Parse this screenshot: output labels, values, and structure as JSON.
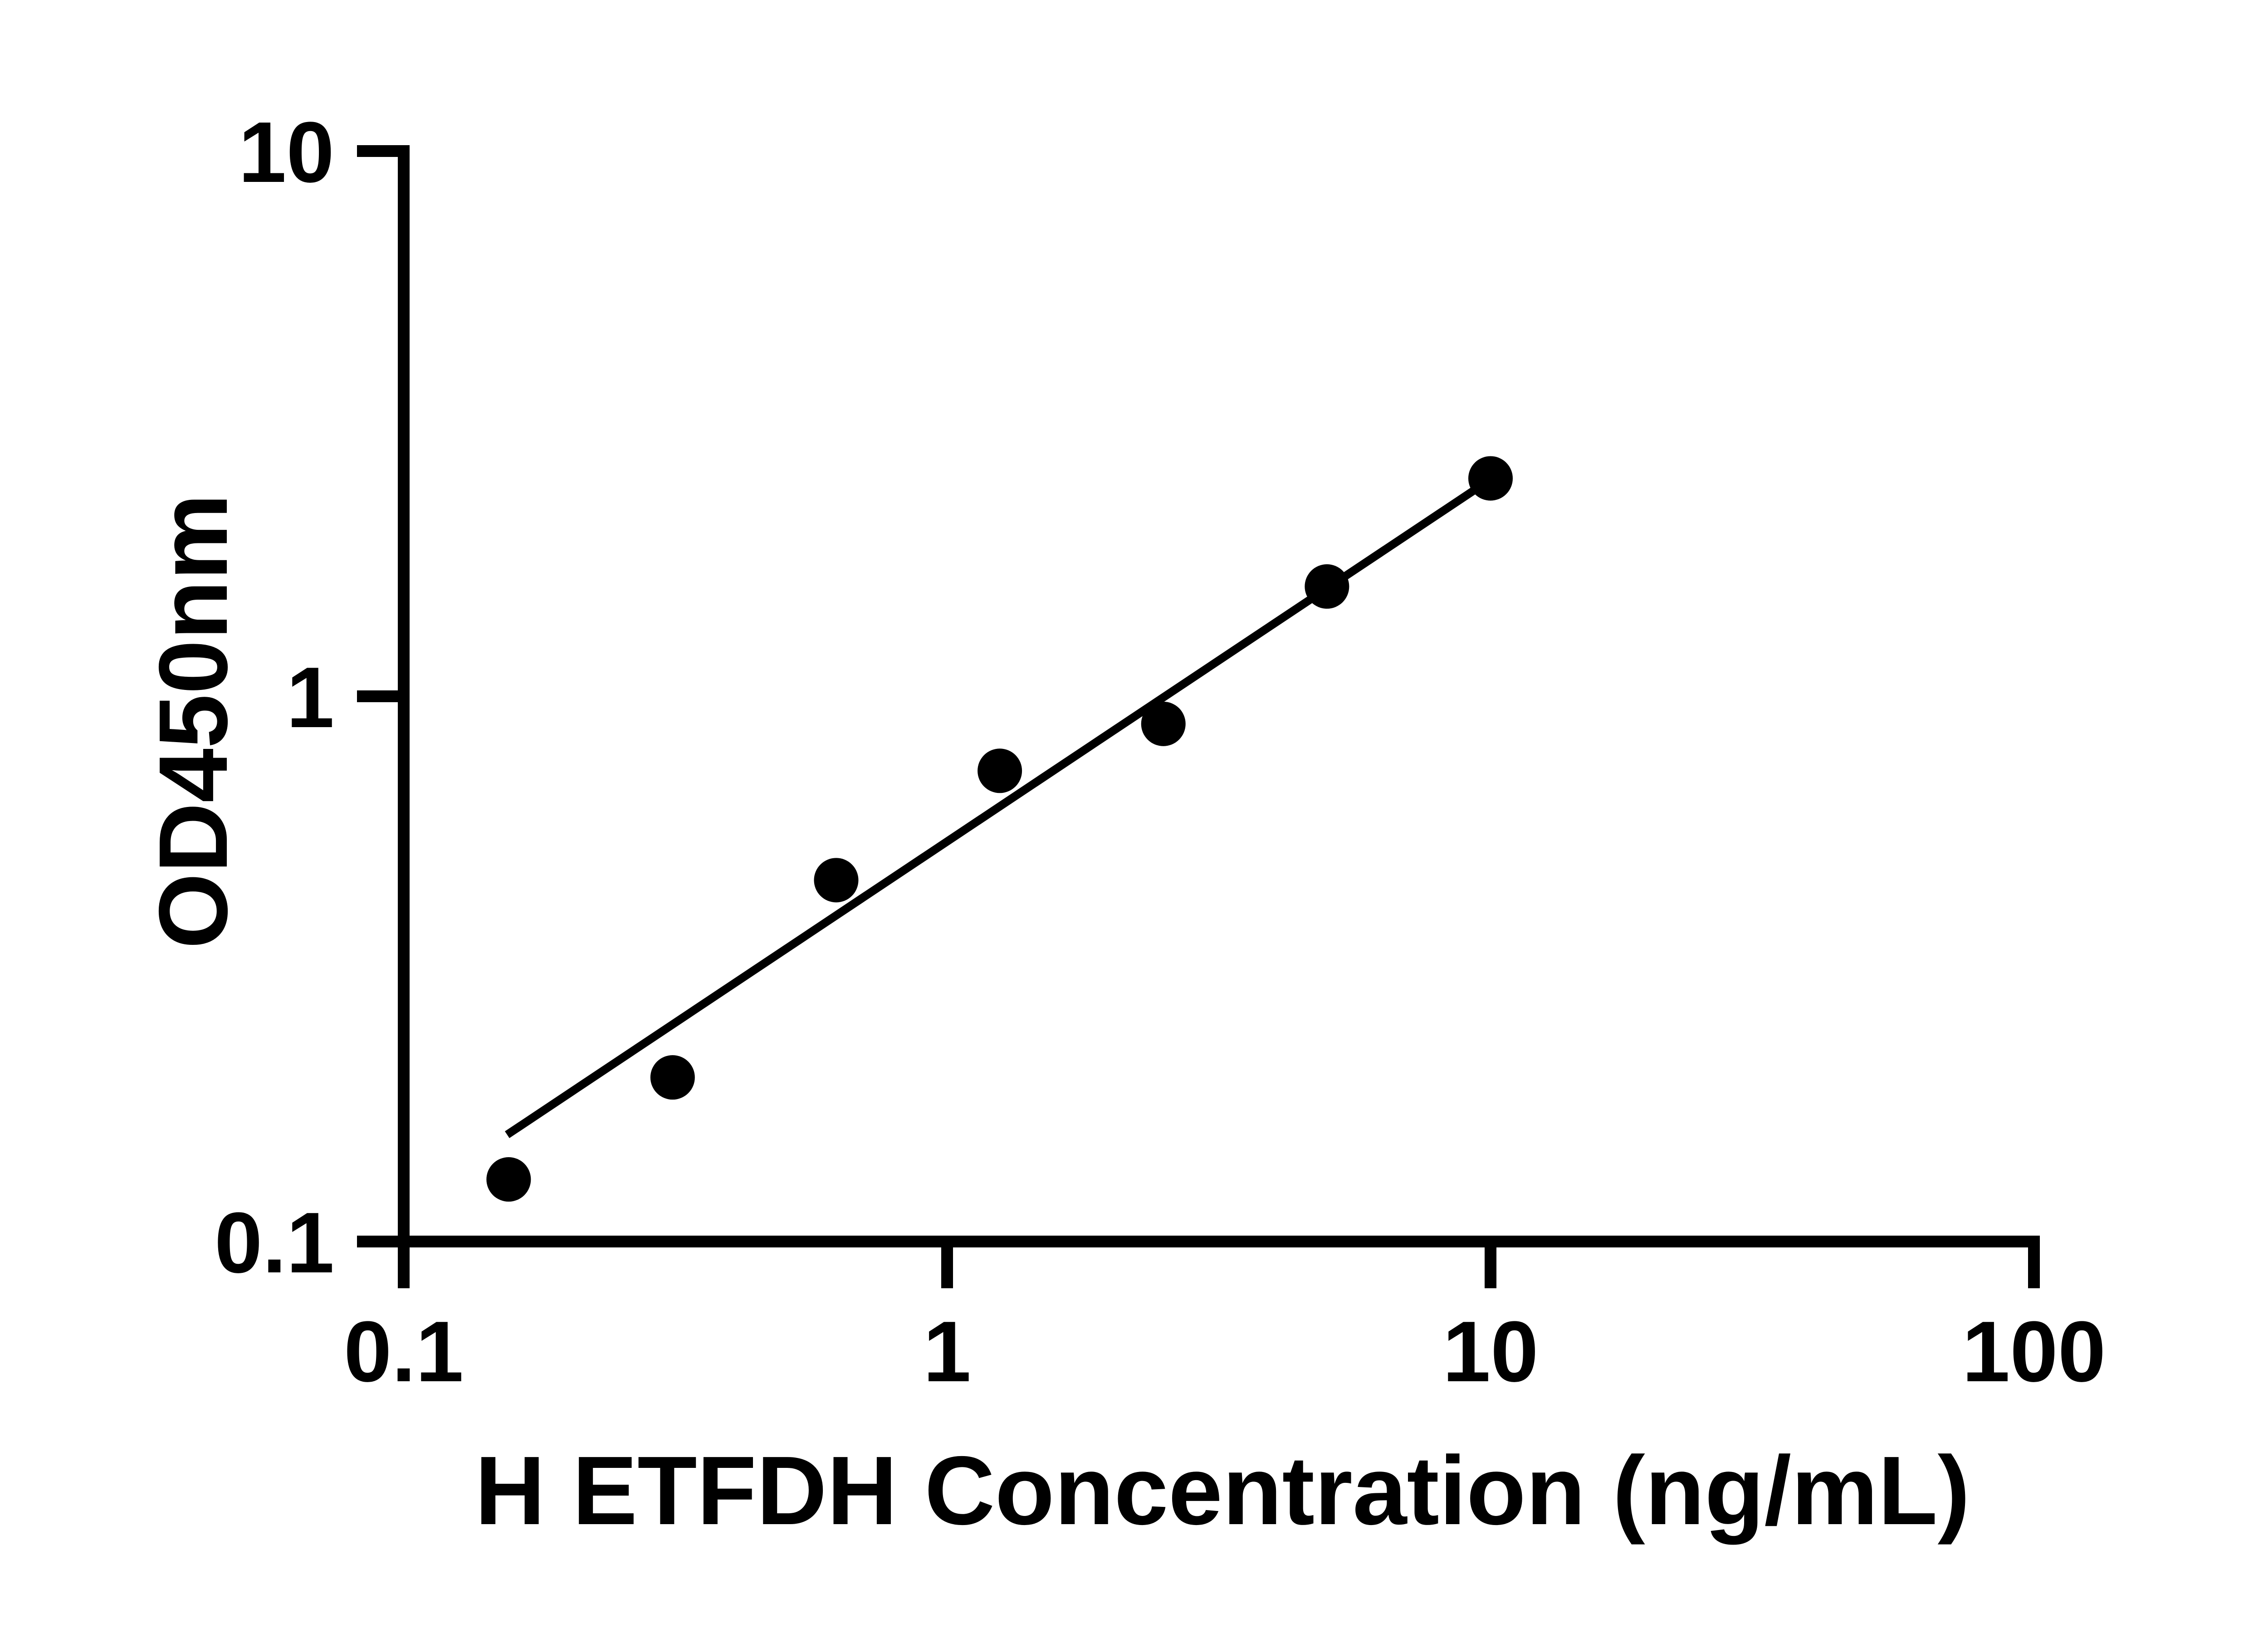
{
  "chart_data": {
    "type": "scatter",
    "title": "",
    "xlabel": "H ETFDH Concentration (ng/mL)",
    "ylabel": "OD450nm",
    "x_scale": "log",
    "y_scale": "log",
    "xlim": [
      0.1,
      100
    ],
    "ylim": [
      0.1,
      10
    ],
    "grid": false,
    "legend": false,
    "marker_color": "#000000",
    "line_color": "#000000",
    "axis_color": "#000000",
    "background_color": "#ffffff",
    "x_ticks": [
      {
        "value": 0.1,
        "label": "0.1"
      },
      {
        "value": 1,
        "label": "1"
      },
      {
        "value": 10,
        "label": "10"
      },
      {
        "value": 100,
        "label": "100"
      }
    ],
    "y_ticks": [
      {
        "value": 0.1,
        "label": "0.1"
      },
      {
        "value": 1,
        "label": "1"
      },
      {
        "value": 10,
        "label": "10"
      }
    ],
    "points": [
      {
        "x": 0.156,
        "y": 0.13
      },
      {
        "x": 0.3125,
        "y": 0.2
      },
      {
        "x": 0.625,
        "y": 0.46
      },
      {
        "x": 1.25,
        "y": 0.73
      },
      {
        "x": 2.5,
        "y": 0.89
      },
      {
        "x": 5,
        "y": 1.59
      },
      {
        "x": 10,
        "y": 2.51
      }
    ],
    "trend_line": {
      "x1": 0.155,
      "y1": 0.157,
      "x2": 10,
      "y2": 2.5
    }
  }
}
